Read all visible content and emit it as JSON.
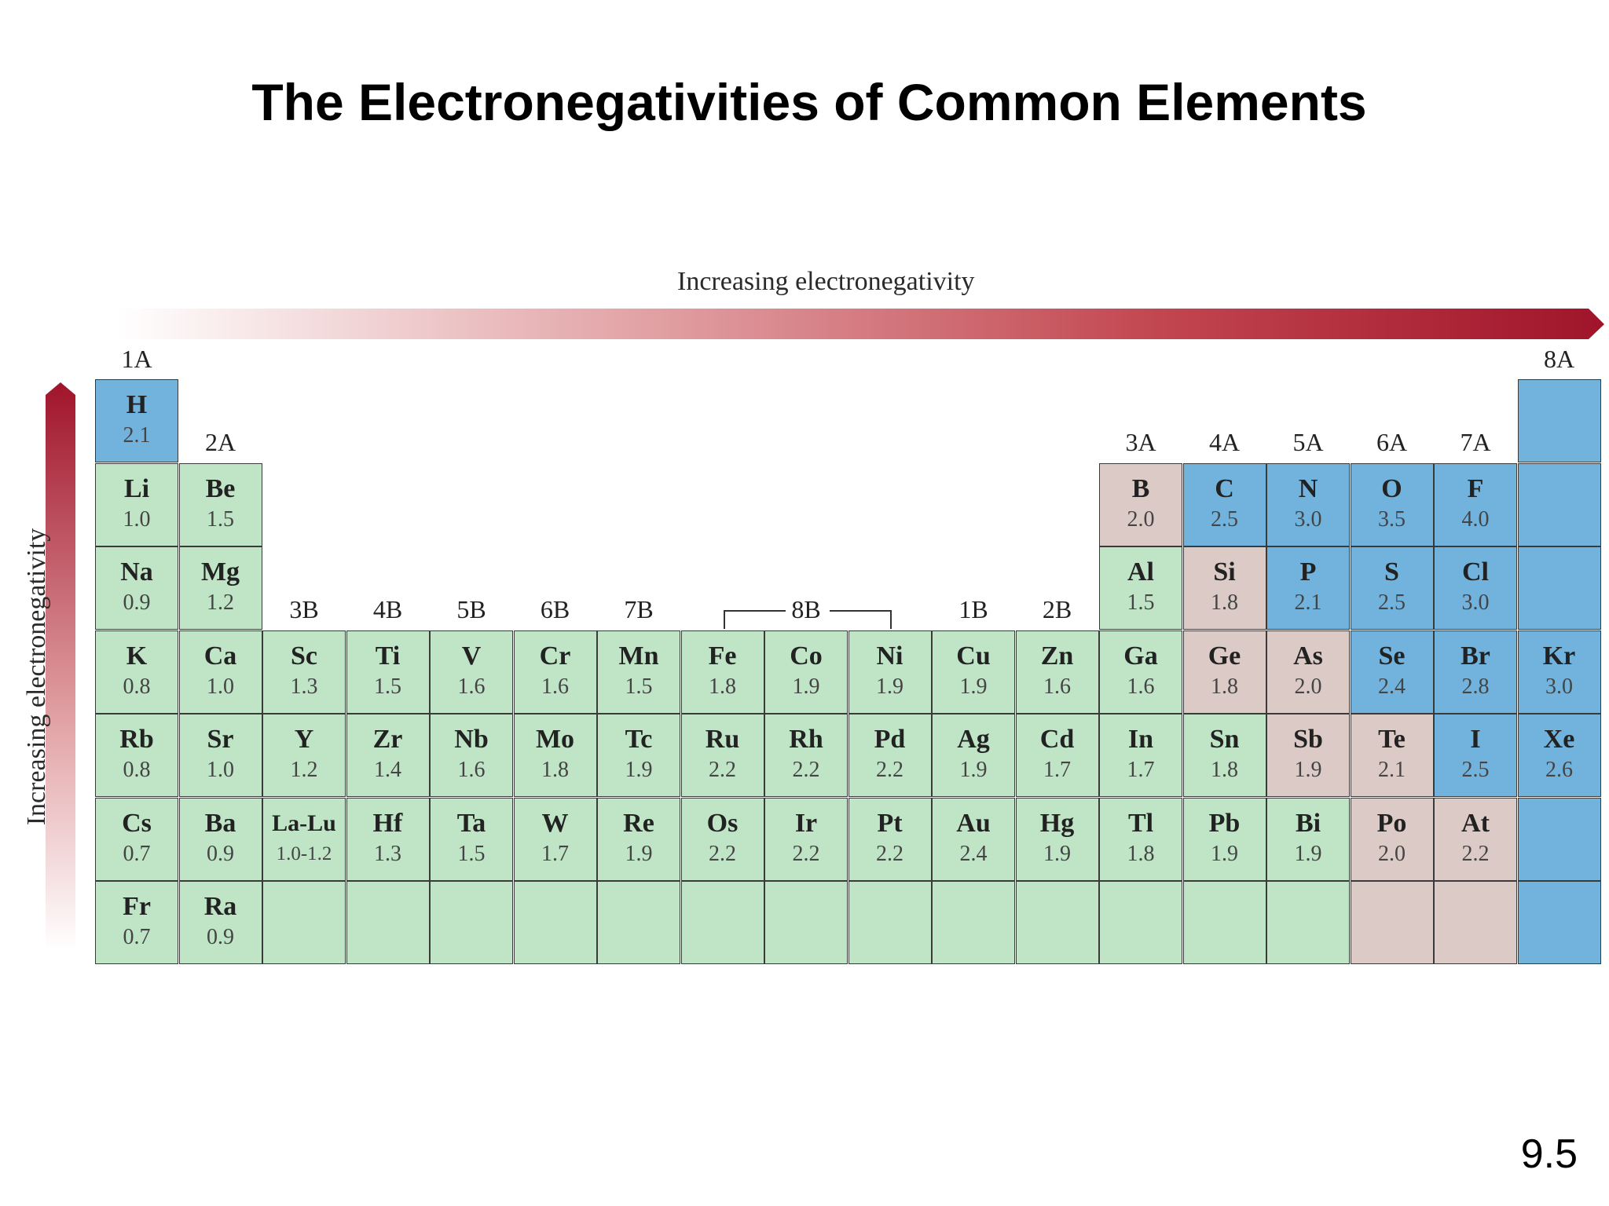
{
  "title": "The Electronegativities of Common Elements",
  "slide_number": "9.5",
  "horizontal_arrow_label": "Increasing electronegativity",
  "vertical_arrow_label": "Increasing electronegativity",
  "colors": {
    "green": "#bfe5c6",
    "blue": "#71b3dd",
    "tan": "#dccac6",
    "arrow": "#a0142a"
  },
  "group_labels": [
    {
      "text": "1A",
      "col": 1,
      "row": 0
    },
    {
      "text": "8A",
      "col": 18,
      "row": 0
    },
    {
      "text": "2A",
      "col": 2,
      "row": 1
    },
    {
      "text": "3A",
      "col": 13,
      "row": 1
    },
    {
      "text": "4A",
      "col": 14,
      "row": 1
    },
    {
      "text": "5A",
      "col": 15,
      "row": 1
    },
    {
      "text": "6A",
      "col": 16,
      "row": 1
    },
    {
      "text": "7A",
      "col": 17,
      "row": 1
    },
    {
      "text": "3B",
      "col": 3,
      "row": 3
    },
    {
      "text": "4B",
      "col": 4,
      "row": 3
    },
    {
      "text": "5B",
      "col": 5,
      "row": 3
    },
    {
      "text": "6B",
      "col": 6,
      "row": 3
    },
    {
      "text": "7B",
      "col": 7,
      "row": 3
    },
    {
      "text": "8B",
      "col": 9,
      "row": 3
    },
    {
      "text": "1B",
      "col": 11,
      "row": 3
    },
    {
      "text": "2B",
      "col": 12,
      "row": 3
    }
  ],
  "elements": [
    {
      "sym": "H",
      "en": "2.1",
      "col": 1,
      "row": 1,
      "color": "blue"
    },
    {
      "sym": "",
      "en": "",
      "col": 18,
      "row": 1,
      "color": "blue"
    },
    {
      "sym": "Li",
      "en": "1.0",
      "col": 1,
      "row": 2,
      "color": "green"
    },
    {
      "sym": "Be",
      "en": "1.5",
      "col": 2,
      "row": 2,
      "color": "green"
    },
    {
      "sym": "B",
      "en": "2.0",
      "col": 13,
      "row": 2,
      "color": "tan"
    },
    {
      "sym": "C",
      "en": "2.5",
      "col": 14,
      "row": 2,
      "color": "blue"
    },
    {
      "sym": "N",
      "en": "3.0",
      "col": 15,
      "row": 2,
      "color": "blue"
    },
    {
      "sym": "O",
      "en": "3.5",
      "col": 16,
      "row": 2,
      "color": "blue"
    },
    {
      "sym": "F",
      "en": "4.0",
      "col": 17,
      "row": 2,
      "color": "blue"
    },
    {
      "sym": "",
      "en": "",
      "col": 18,
      "row": 2,
      "color": "blue"
    },
    {
      "sym": "Na",
      "en": "0.9",
      "col": 1,
      "row": 3,
      "color": "green"
    },
    {
      "sym": "Mg",
      "en": "1.2",
      "col": 2,
      "row": 3,
      "color": "green"
    },
    {
      "sym": "Al",
      "en": "1.5",
      "col": 13,
      "row": 3,
      "color": "green"
    },
    {
      "sym": "Si",
      "en": "1.8",
      "col": 14,
      "row": 3,
      "color": "tan"
    },
    {
      "sym": "P",
      "en": "2.1",
      "col": 15,
      "row": 3,
      "color": "blue"
    },
    {
      "sym": "S",
      "en": "2.5",
      "col": 16,
      "row": 3,
      "color": "blue"
    },
    {
      "sym": "Cl",
      "en": "3.0",
      "col": 17,
      "row": 3,
      "color": "blue"
    },
    {
      "sym": "",
      "en": "",
      "col": 18,
      "row": 3,
      "color": "blue"
    },
    {
      "sym": "K",
      "en": "0.8",
      "col": 1,
      "row": 4,
      "color": "green"
    },
    {
      "sym": "Ca",
      "en": "1.0",
      "col": 2,
      "row": 4,
      "color": "green"
    },
    {
      "sym": "Sc",
      "en": "1.3",
      "col": 3,
      "row": 4,
      "color": "green"
    },
    {
      "sym": "Ti",
      "en": "1.5",
      "col": 4,
      "row": 4,
      "color": "green"
    },
    {
      "sym": "V",
      "en": "1.6",
      "col": 5,
      "row": 4,
      "color": "green"
    },
    {
      "sym": "Cr",
      "en": "1.6",
      "col": 6,
      "row": 4,
      "color": "green"
    },
    {
      "sym": "Mn",
      "en": "1.5",
      "col": 7,
      "row": 4,
      "color": "green"
    },
    {
      "sym": "Fe",
      "en": "1.8",
      "col": 8,
      "row": 4,
      "color": "green"
    },
    {
      "sym": "Co",
      "en": "1.9",
      "col": 9,
      "row": 4,
      "color": "green"
    },
    {
      "sym": "Ni",
      "en": "1.9",
      "col": 10,
      "row": 4,
      "color": "green"
    },
    {
      "sym": "Cu",
      "en": "1.9",
      "col": 11,
      "row": 4,
      "color": "green"
    },
    {
      "sym": "Zn",
      "en": "1.6",
      "col": 12,
      "row": 4,
      "color": "green"
    },
    {
      "sym": "Ga",
      "en": "1.6",
      "col": 13,
      "row": 4,
      "color": "green"
    },
    {
      "sym": "Ge",
      "en": "1.8",
      "col": 14,
      "row": 4,
      "color": "tan"
    },
    {
      "sym": "As",
      "en": "2.0",
      "col": 15,
      "row": 4,
      "color": "tan"
    },
    {
      "sym": "Se",
      "en": "2.4",
      "col": 16,
      "row": 4,
      "color": "blue"
    },
    {
      "sym": "Br",
      "en": "2.8",
      "col": 17,
      "row": 4,
      "color": "blue"
    },
    {
      "sym": "Kr",
      "en": "3.0",
      "col": 18,
      "row": 4,
      "color": "blue"
    },
    {
      "sym": "Rb",
      "en": "0.8",
      "col": 1,
      "row": 5,
      "color": "green"
    },
    {
      "sym": "Sr",
      "en": "1.0",
      "col": 2,
      "row": 5,
      "color": "green"
    },
    {
      "sym": "Y",
      "en": "1.2",
      "col": 3,
      "row": 5,
      "color": "green"
    },
    {
      "sym": "Zr",
      "en": "1.4",
      "col": 4,
      "row": 5,
      "color": "green"
    },
    {
      "sym": "Nb",
      "en": "1.6",
      "col": 5,
      "row": 5,
      "color": "green"
    },
    {
      "sym": "Mo",
      "en": "1.8",
      "col": 6,
      "row": 5,
      "color": "green"
    },
    {
      "sym": "Tc",
      "en": "1.9",
      "col": 7,
      "row": 5,
      "color": "green"
    },
    {
      "sym": "Ru",
      "en": "2.2",
      "col": 8,
      "row": 5,
      "color": "green"
    },
    {
      "sym": "Rh",
      "en": "2.2",
      "col": 9,
      "row": 5,
      "color": "green"
    },
    {
      "sym": "Pd",
      "en": "2.2",
      "col": 10,
      "row": 5,
      "color": "green"
    },
    {
      "sym": "Ag",
      "en": "1.9",
      "col": 11,
      "row": 5,
      "color": "green"
    },
    {
      "sym": "Cd",
      "en": "1.7",
      "col": 12,
      "row": 5,
      "color": "green"
    },
    {
      "sym": "In",
      "en": "1.7",
      "col": 13,
      "row": 5,
      "color": "green"
    },
    {
      "sym": "Sn",
      "en": "1.8",
      "col": 14,
      "row": 5,
      "color": "green"
    },
    {
      "sym": "Sb",
      "en": "1.9",
      "col": 15,
      "row": 5,
      "color": "tan"
    },
    {
      "sym": "Te",
      "en": "2.1",
      "col": 16,
      "row": 5,
      "color": "tan"
    },
    {
      "sym": "I",
      "en": "2.5",
      "col": 17,
      "row": 5,
      "color": "blue"
    },
    {
      "sym": "Xe",
      "en": "2.6",
      "col": 18,
      "row": 5,
      "color": "blue"
    },
    {
      "sym": "Cs",
      "en": "0.7",
      "col": 1,
      "row": 6,
      "color": "green"
    },
    {
      "sym": "Ba",
      "en": "0.9",
      "col": 2,
      "row": 6,
      "color": "green"
    },
    {
      "sym": "La-Lu",
      "en": "1.0-1.2",
      "col": 3,
      "row": 6,
      "color": "green"
    },
    {
      "sym": "Hf",
      "en": "1.3",
      "col": 4,
      "row": 6,
      "color": "green"
    },
    {
      "sym": "Ta",
      "en": "1.5",
      "col": 5,
      "row": 6,
      "color": "green"
    },
    {
      "sym": "W",
      "en": "1.7",
      "col": 6,
      "row": 6,
      "color": "green"
    },
    {
      "sym": "Re",
      "en": "1.9",
      "col": 7,
      "row": 6,
      "color": "green"
    },
    {
      "sym": "Os",
      "en": "2.2",
      "col": 8,
      "row": 6,
      "color": "green"
    },
    {
      "sym": "Ir",
      "en": "2.2",
      "col": 9,
      "row": 6,
      "color": "green"
    },
    {
      "sym": "Pt",
      "en": "2.2",
      "col": 10,
      "row": 6,
      "color": "green"
    },
    {
      "sym": "Au",
      "en": "2.4",
      "col": 11,
      "row": 6,
      "color": "green"
    },
    {
      "sym": "Hg",
      "en": "1.9",
      "col": 12,
      "row": 6,
      "color": "green"
    },
    {
      "sym": "Tl",
      "en": "1.8",
      "col": 13,
      "row": 6,
      "color": "green"
    },
    {
      "sym": "Pb",
      "en": "1.9",
      "col": 14,
      "row": 6,
      "color": "green"
    },
    {
      "sym": "Bi",
      "en": "1.9",
      "col": 15,
      "row": 6,
      "color": "green"
    },
    {
      "sym": "Po",
      "en": "2.0",
      "col": 16,
      "row": 6,
      "color": "tan"
    },
    {
      "sym": "At",
      "en": "2.2",
      "col": 17,
      "row": 6,
      "color": "tan"
    },
    {
      "sym": "",
      "en": "",
      "col": 18,
      "row": 6,
      "color": "blue"
    },
    {
      "sym": "Fr",
      "en": "0.7",
      "col": 1,
      "row": 7,
      "color": "green"
    },
    {
      "sym": "Ra",
      "en": "0.9",
      "col": 2,
      "row": 7,
      "color": "green"
    },
    {
      "sym": "",
      "en": "",
      "col": 3,
      "row": 7,
      "color": "green"
    },
    {
      "sym": "",
      "en": "",
      "col": 4,
      "row": 7,
      "color": "green"
    },
    {
      "sym": "",
      "en": "",
      "col": 5,
      "row": 7,
      "color": "green"
    },
    {
      "sym": "",
      "en": "",
      "col": 6,
      "row": 7,
      "color": "green"
    },
    {
      "sym": "",
      "en": "",
      "col": 7,
      "row": 7,
      "color": "green"
    },
    {
      "sym": "",
      "en": "",
      "col": 8,
      "row": 7,
      "color": "green"
    },
    {
      "sym": "",
      "en": "",
      "col": 9,
      "row": 7,
      "color": "green"
    },
    {
      "sym": "",
      "en": "",
      "col": 10,
      "row": 7,
      "color": "green"
    },
    {
      "sym": "",
      "en": "",
      "col": 11,
      "row": 7,
      "color": "green"
    },
    {
      "sym": "",
      "en": "",
      "col": 12,
      "row": 7,
      "color": "green"
    },
    {
      "sym": "",
      "en": "",
      "col": 13,
      "row": 7,
      "color": "green"
    },
    {
      "sym": "",
      "en": "",
      "col": 14,
      "row": 7,
      "color": "green"
    },
    {
      "sym": "",
      "en": "",
      "col": 15,
      "row": 7,
      "color": "green"
    },
    {
      "sym": "",
      "en": "",
      "col": 16,
      "row": 7,
      "color": "tan"
    },
    {
      "sym": "",
      "en": "",
      "col": 17,
      "row": 7,
      "color": "tan"
    },
    {
      "sym": "",
      "en": "",
      "col": 18,
      "row": 7,
      "color": "blue"
    }
  ]
}
